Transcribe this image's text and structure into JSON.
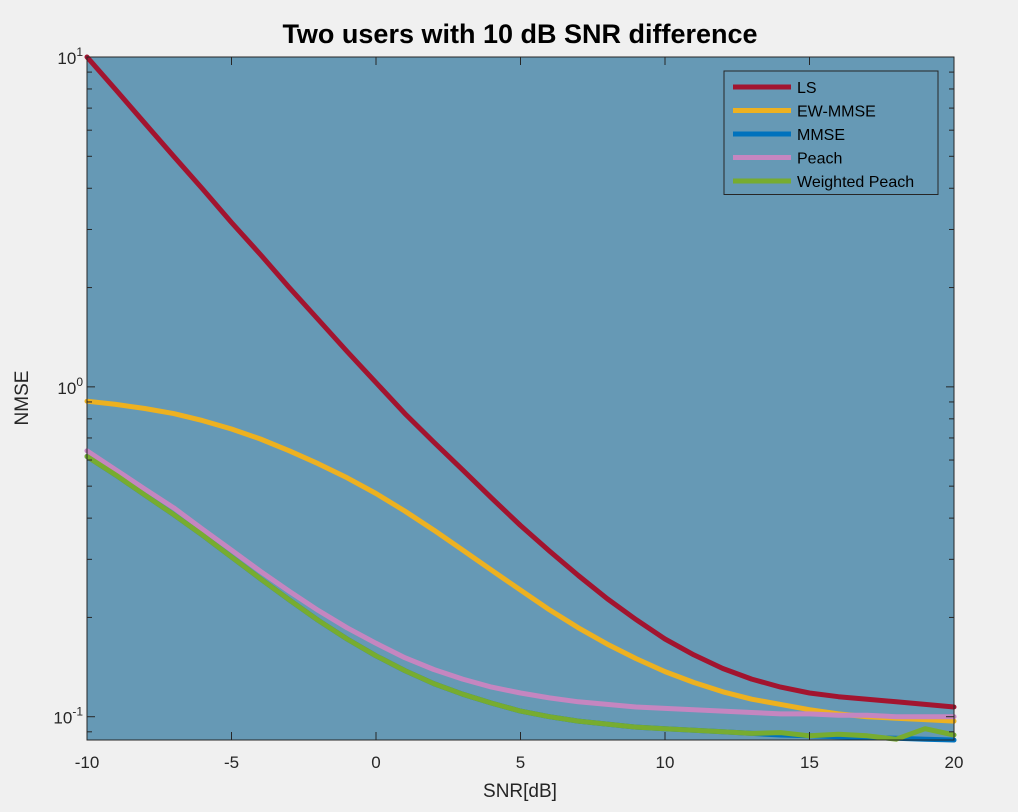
{
  "chart_data": {
    "type": "line",
    "title": "Two users with 10 dB SNR difference",
    "xlabel": "SNR[dB]",
    "ylabel": "NMSE",
    "xlim": [
      -10,
      20
    ],
    "ylim": [
      0.085,
      10
    ],
    "yscale": "log",
    "grid": false,
    "legend_position": "top-right",
    "background_color": "#6699b5",
    "x_ticks": [
      -10,
      -5,
      0,
      5,
      10,
      15,
      20
    ],
    "x_tick_labels": [
      "-10",
      "-5",
      "0",
      "5",
      "10",
      "15",
      "20"
    ],
    "y_ticks": [
      {
        "value": 10,
        "base": "10",
        "exponent": "1"
      },
      {
        "value": 1,
        "base": "10",
        "exponent": "0"
      },
      {
        "value": 0.1,
        "base": "10",
        "exponent": "-1"
      }
    ],
    "x": [
      -10,
      -9,
      -8,
      -7,
      -6,
      -5,
      -4,
      -3,
      -2,
      -1,
      0,
      1,
      2,
      3,
      4,
      5,
      6,
      7,
      8,
      9,
      10,
      11,
      12,
      13,
      14,
      15,
      16,
      17,
      18,
      19,
      20
    ],
    "series": [
      {
        "name": "LS",
        "color": "#a2142f",
        "values": [
          10.0,
          7.95,
          6.3,
          5.0,
          3.98,
          3.15,
          2.52,
          2.0,
          1.6,
          1.28,
          1.03,
          0.83,
          0.68,
          0.56,
          0.46,
          0.38,
          0.318,
          0.268,
          0.228,
          0.197,
          0.172,
          0.154,
          0.14,
          0.13,
          0.123,
          0.118,
          0.115,
          0.113,
          0.111,
          0.109,
          0.107
        ]
      },
      {
        "name": "EW-MMSE",
        "color": "#edb120",
        "values": [
          0.905,
          0.885,
          0.86,
          0.83,
          0.79,
          0.745,
          0.695,
          0.64,
          0.585,
          0.53,
          0.475,
          0.42,
          0.368,
          0.32,
          0.278,
          0.242,
          0.211,
          0.186,
          0.166,
          0.15,
          0.137,
          0.127,
          0.119,
          0.113,
          0.109,
          0.105,
          0.102,
          0.1,
          0.099,
          0.098,
          0.097
        ]
      },
      {
        "name": "MMSE",
        "color": "#0072bd",
        "values": [
          0.615,
          0.54,
          0.47,
          0.41,
          0.355,
          0.305,
          0.262,
          0.226,
          0.196,
          0.172,
          0.153,
          0.138,
          0.126,
          0.117,
          0.11,
          0.104,
          0.1,
          0.097,
          0.095,
          0.093,
          0.092,
          0.091,
          0.09,
          0.089,
          0.088,
          0.0875,
          0.087,
          0.0865,
          0.086,
          0.0855,
          0.085
        ]
      },
      {
        "name": "Peach",
        "color": "#c586c0",
        "values": [
          0.64,
          0.56,
          0.49,
          0.43,
          0.37,
          0.32,
          0.276,
          0.24,
          0.21,
          0.186,
          0.167,
          0.151,
          0.139,
          0.13,
          0.123,
          0.118,
          0.114,
          0.111,
          0.109,
          0.107,
          0.106,
          0.105,
          0.104,
          0.103,
          0.102,
          0.102,
          0.101,
          0.101,
          0.1,
          0.1,
          0.1
        ]
      },
      {
        "name": "Weighted Peach",
        "color": "#77ac30",
        "values": [
          0.615,
          0.54,
          0.47,
          0.41,
          0.355,
          0.305,
          0.262,
          0.226,
          0.196,
          0.172,
          0.153,
          0.138,
          0.126,
          0.117,
          0.11,
          0.104,
          0.1,
          0.097,
          0.095,
          0.093,
          0.092,
          0.091,
          0.09,
          0.089,
          0.0895,
          0.0875,
          0.0885,
          0.0875,
          0.0855,
          0.092,
          0.088
        ]
      }
    ]
  }
}
